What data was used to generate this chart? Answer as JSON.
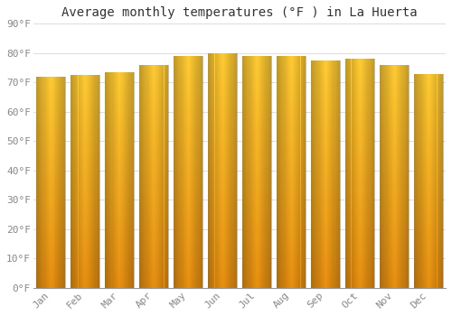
{
  "title": "Average monthly temperatures (°F ) in La Huerta",
  "months": [
    "Jan",
    "Feb",
    "Mar",
    "Apr",
    "May",
    "Jun",
    "Jul",
    "Aug",
    "Sep",
    "Oct",
    "Nov",
    "Dec"
  ],
  "values": [
    72,
    72.5,
    73.5,
    76,
    79,
    80,
    79,
    79,
    77.5,
    78,
    76,
    73
  ],
  "ylim": [
    0,
    90
  ],
  "yticks": [
    0,
    10,
    20,
    30,
    40,
    50,
    60,
    70,
    80,
    90
  ],
  "ytick_labels": [
    "0°F",
    "10°F",
    "20°F",
    "30°F",
    "40°F",
    "50°F",
    "60°F",
    "70°F",
    "80°F",
    "90°F"
  ],
  "bar_color_center": "#FFCC33",
  "bar_color_edge": "#E89010",
  "background_color": "#ffffff",
  "plot_bg_color": "#ffffff",
  "grid_color": "#dddddd",
  "title_fontsize": 10,
  "tick_fontsize": 8,
  "font_family": "monospace",
  "bar_width": 0.85
}
